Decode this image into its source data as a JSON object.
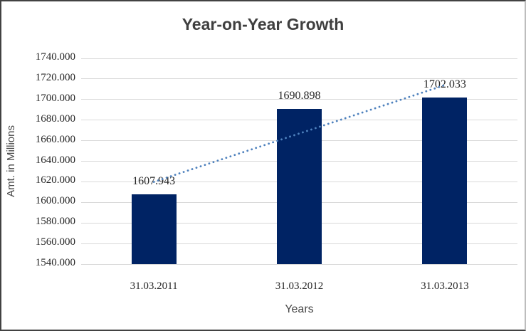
{
  "title": "Year-on-Year Growth",
  "chart_data": {
    "type": "bar",
    "title": "Year-on-Year Growth",
    "categories": [
      "31.03.2011",
      "31.03.2012",
      "31.03.2013"
    ],
    "values": [
      1607.943,
      1690.898,
      1702.033
    ],
    "data_labels": [
      "1607.943",
      "1690.898",
      "1702.033"
    ],
    "xlabel": "Years",
    "ylabel": "Amt. in Millions",
    "ylim": [
      1540,
      1740
    ],
    "ytick_step": 20,
    "ytick_labels": [
      "1740.000",
      "1720.000",
      "1700.000",
      "1680.000",
      "1660.000",
      "1640.000",
      "1620.000",
      "1600.000",
      "1580.000",
      "1560.000",
      "1540.000"
    ],
    "grid": true,
    "legend": "none",
    "bar_color": "#002364",
    "gridline_color": "#d9d9d9",
    "trendline": {
      "type": "linear",
      "style": "dotted",
      "color": "#4e81bd"
    }
  }
}
